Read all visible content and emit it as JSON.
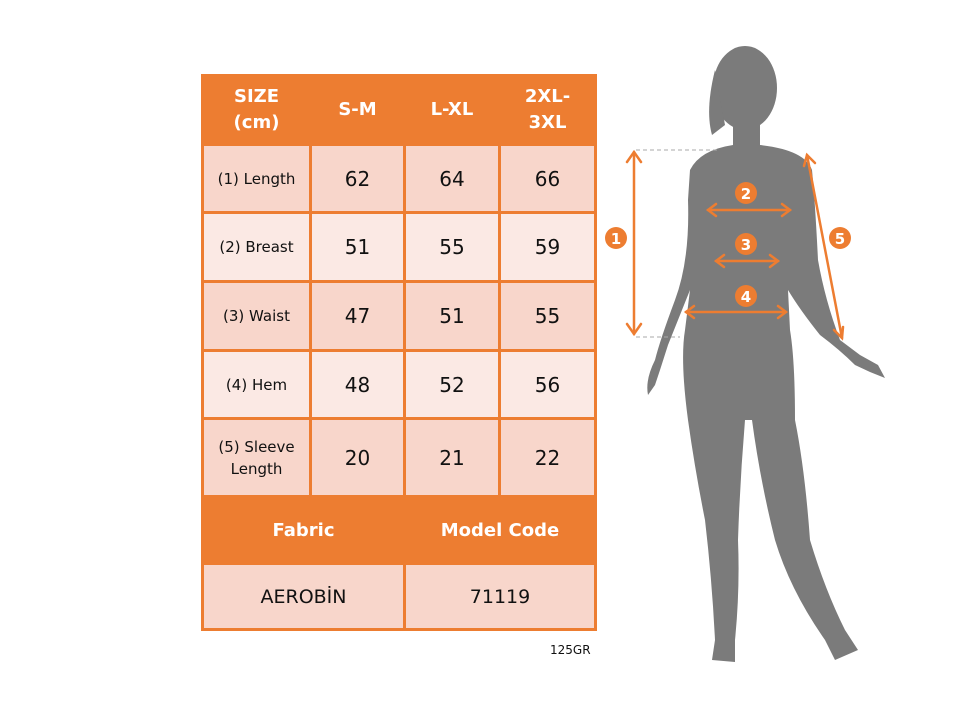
{
  "table": {
    "headers": [
      "SIZE (cm)",
      "S-M",
      "L-XL",
      "2XL-3XL"
    ],
    "rows": [
      {
        "label": "(1) Length",
        "values": [
          "62",
          "64",
          "66"
        ]
      },
      {
        "label": "(2) Breast",
        "values": [
          "51",
          "55",
          "59"
        ]
      },
      {
        "label": "(3) Waist",
        "values": [
          "47",
          "51",
          "55"
        ]
      },
      {
        "label": "(4) Hem",
        "values": [
          "48",
          "52",
          "56"
        ]
      },
      {
        "label": "(5) Sleeve Length",
        "values": [
          "20",
          "21",
          "22"
        ]
      }
    ],
    "fabric_label": "Fabric",
    "model_code_label": "Model Code",
    "fabric_value": "AEROBİN",
    "model_code_value": "71119"
  },
  "weight": "125GR",
  "figure": {
    "markers": [
      "1",
      "2",
      "3",
      "4",
      "5"
    ],
    "accent_color": "#ED7D31",
    "silhouette_color": "#7B7B7B"
  }
}
